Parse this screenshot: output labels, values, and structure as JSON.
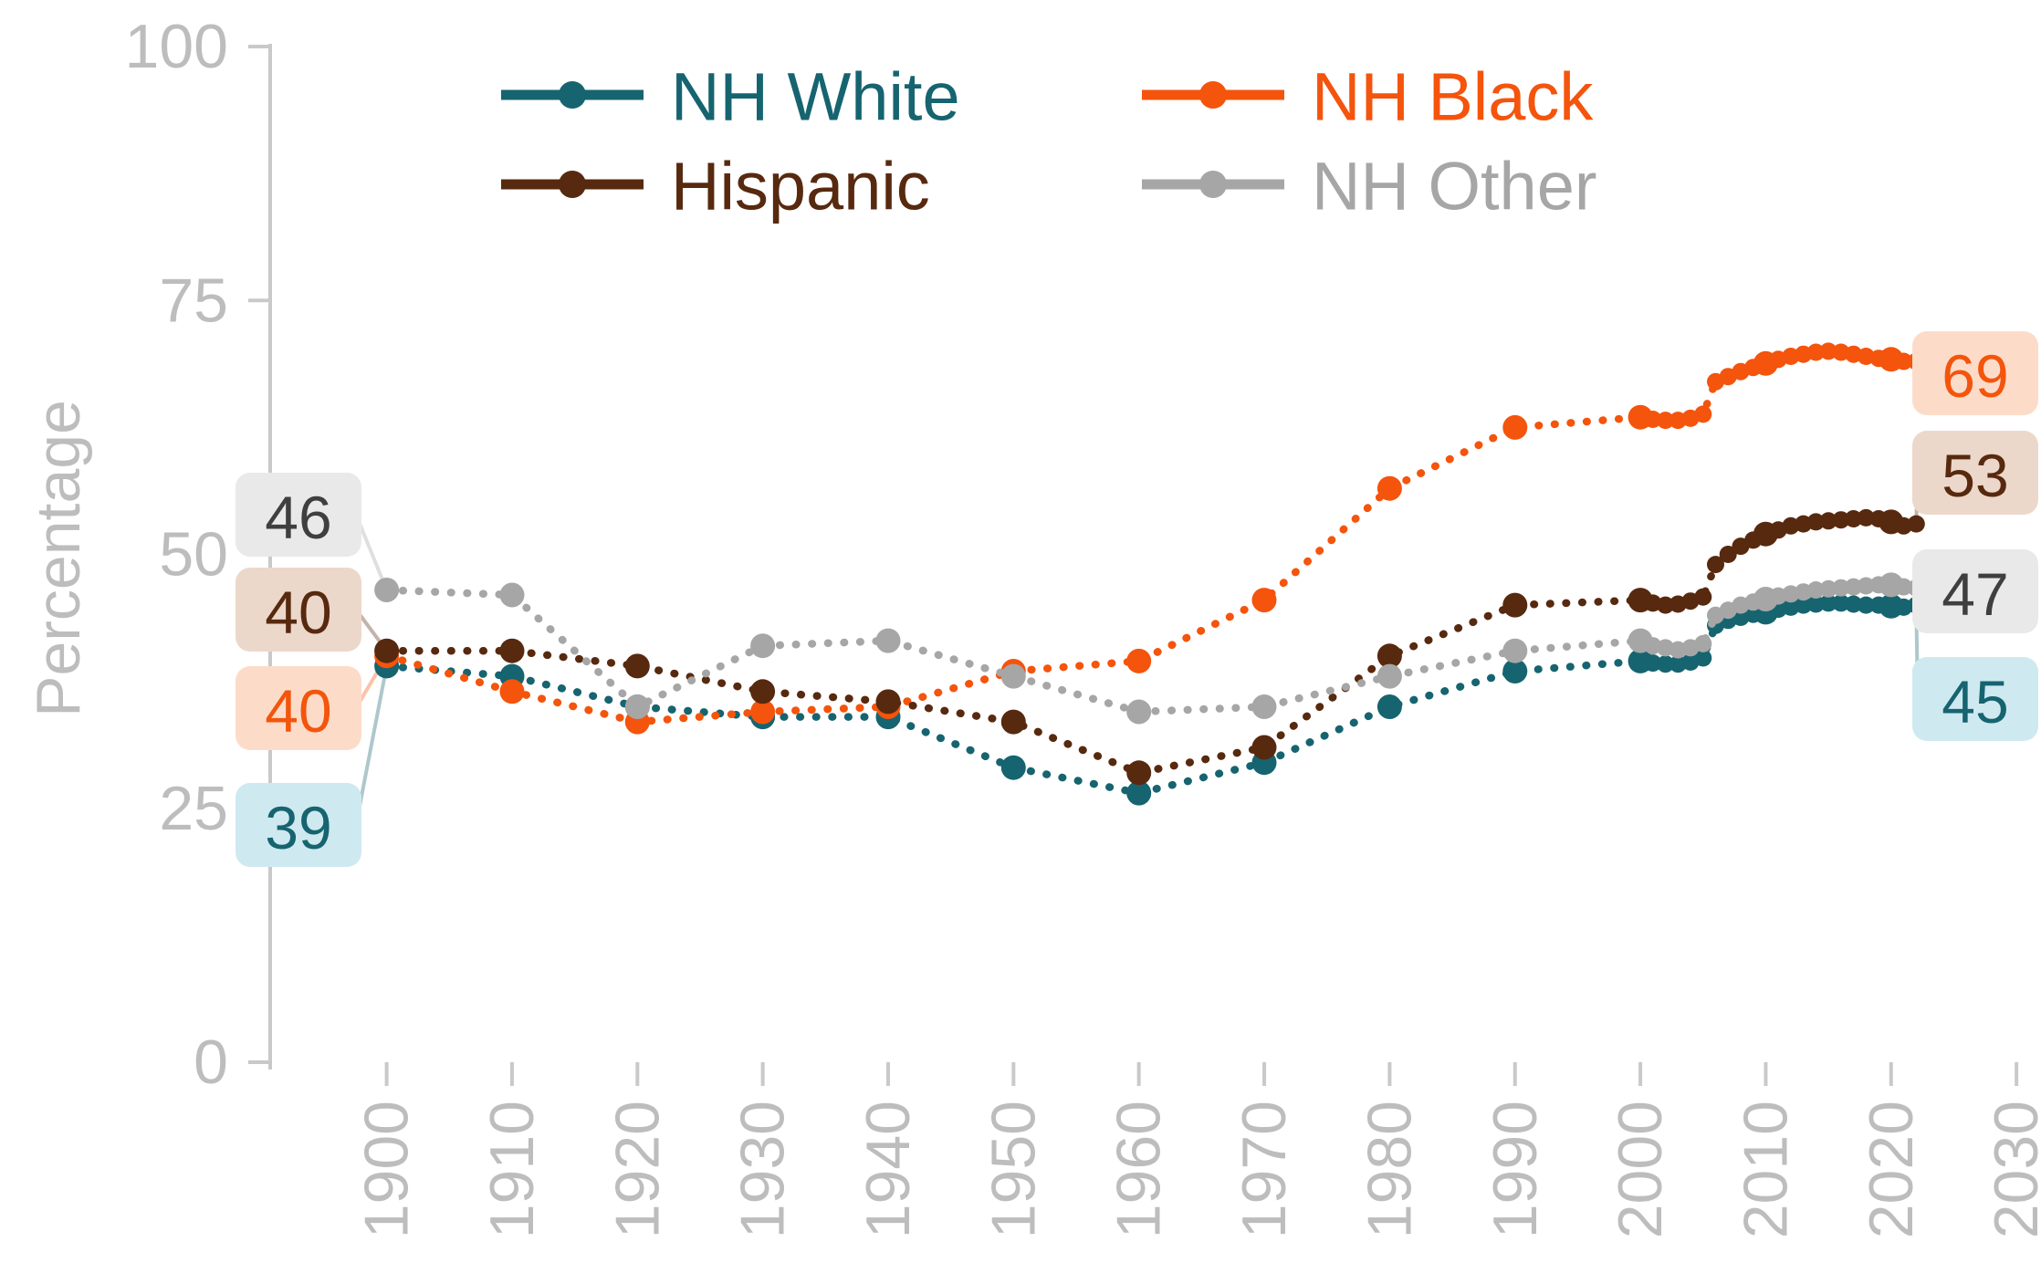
{
  "figure": {
    "background": "#ffffff",
    "axis_color": "#c9c9c9",
    "tick_label_color": "#bdbdbd"
  },
  "chart_data": {
    "type": "line",
    "title": "",
    "ylabel": "Percentage",
    "xlabel": "",
    "ylim": [
      0,
      100
    ],
    "yticks": [
      0,
      25,
      50,
      75,
      100
    ],
    "xticks": [
      1900,
      1910,
      1920,
      1930,
      1940,
      1950,
      1960,
      1970,
      1980,
      1990,
      2000,
      2010,
      2020,
      2030
    ],
    "grid": false,
    "legend_position": "top",
    "line_style": "dotted-with-markers",
    "series": [
      {
        "name": "NH White",
        "color": "#166470",
        "badge_bg": "#cfe9f0",
        "badge_text": "#166470",
        "start_label": "39",
        "end_label": "45",
        "points": [
          [
            1900,
            39
          ],
          [
            1910,
            38
          ],
          [
            1920,
            35
          ],
          [
            1930,
            34
          ],
          [
            1940,
            34
          ],
          [
            1950,
            29
          ],
          [
            1960,
            26.5
          ],
          [
            1970,
            29.5
          ],
          [
            1980,
            35
          ],
          [
            1990,
            38.5
          ],
          [
            2000,
            39.5
          ],
          [
            2001,
            39.3
          ],
          [
            2002,
            39.2
          ],
          [
            2003,
            39.2
          ],
          [
            2004,
            39.4
          ],
          [
            2005,
            39.8
          ],
          [
            2006,
            43
          ],
          [
            2007,
            43.5
          ],
          [
            2008,
            43.8
          ],
          [
            2009,
            44.1
          ],
          [
            2010,
            44.3
          ],
          [
            2011,
            44.6
          ],
          [
            2012,
            44.8
          ],
          [
            2013,
            45
          ],
          [
            2014,
            45.1
          ],
          [
            2015,
            45.2
          ],
          [
            2016,
            45.2
          ],
          [
            2017,
            45.1
          ],
          [
            2018,
            45
          ],
          [
            2019,
            45
          ],
          [
            2020,
            44.9
          ],
          [
            2021,
            44.8
          ],
          [
            2022,
            45
          ]
        ]
      },
      {
        "name": "NH Black",
        "color": "#f4540c",
        "badge_bg": "#fcdcc9",
        "badge_text": "#f4540c",
        "start_label": "40",
        "end_label": "69",
        "points": [
          [
            1900,
            40
          ],
          [
            1910,
            36.5
          ],
          [
            1920,
            33.5
          ],
          [
            1930,
            34.5
          ],
          [
            1940,
            35
          ],
          [
            1950,
            38.5
          ],
          [
            1960,
            39.5
          ],
          [
            1970,
            45.5
          ],
          [
            1980,
            56.5
          ],
          [
            1990,
            62.5
          ],
          [
            2000,
            63.5
          ],
          [
            2001,
            63.3
          ],
          [
            2002,
            63.2
          ],
          [
            2003,
            63.2
          ],
          [
            2004,
            63.4
          ],
          [
            2005,
            63.8
          ],
          [
            2006,
            67
          ],
          [
            2007,
            67.5
          ],
          [
            2008,
            68
          ],
          [
            2009,
            68.4
          ],
          [
            2010,
            68.8
          ],
          [
            2011,
            69.2
          ],
          [
            2012,
            69.5
          ],
          [
            2013,
            69.7
          ],
          [
            2014,
            69.9
          ],
          [
            2015,
            70
          ],
          [
            2016,
            69.9
          ],
          [
            2017,
            69.7
          ],
          [
            2018,
            69.5
          ],
          [
            2019,
            69.3
          ],
          [
            2020,
            69.2
          ],
          [
            2021,
            69
          ],
          [
            2022,
            69
          ]
        ]
      },
      {
        "name": "Hispanic",
        "color": "#57290f",
        "badge_bg": "#ecd8ca",
        "badge_text": "#57290f",
        "start_label": "40",
        "end_label": "53",
        "points": [
          [
            1900,
            40.5
          ],
          [
            1910,
            40.5
          ],
          [
            1920,
            39
          ],
          [
            1930,
            36.5
          ],
          [
            1940,
            35.5
          ],
          [
            1950,
            33.5
          ],
          [
            1960,
            28.5
          ],
          [
            1970,
            31
          ],
          [
            1980,
            40
          ],
          [
            1990,
            45
          ],
          [
            2000,
            45.5
          ],
          [
            2001,
            45.2
          ],
          [
            2002,
            45
          ],
          [
            2003,
            45.1
          ],
          [
            2004,
            45.4
          ],
          [
            2005,
            45.8
          ],
          [
            2006,
            49
          ],
          [
            2007,
            50
          ],
          [
            2008,
            50.8
          ],
          [
            2009,
            51.4
          ],
          [
            2010,
            52
          ],
          [
            2011,
            52.4
          ],
          [
            2012,
            52.8
          ],
          [
            2013,
            53
          ],
          [
            2014,
            53.2
          ],
          [
            2015,
            53.3
          ],
          [
            2016,
            53.4
          ],
          [
            2017,
            53.5
          ],
          [
            2018,
            53.6
          ],
          [
            2019,
            53.5
          ],
          [
            2020,
            53.2
          ],
          [
            2021,
            52.8
          ],
          [
            2022,
            53
          ]
        ]
      },
      {
        "name": "NH Other",
        "color": "#a6a6a6",
        "badge_bg": "#e9e9e9",
        "badge_text": "#3f3f3f",
        "start_label": "46",
        "end_label": "47",
        "points": [
          [
            1900,
            46.5
          ],
          [
            1910,
            46
          ],
          [
            1920,
            35
          ],
          [
            1930,
            41
          ],
          [
            1940,
            41.5
          ],
          [
            1950,
            38
          ],
          [
            1960,
            34.5
          ],
          [
            1970,
            35
          ],
          [
            1980,
            38
          ],
          [
            1990,
            40.5
          ],
          [
            2000,
            41.5
          ],
          [
            2001,
            41
          ],
          [
            2002,
            40.8
          ],
          [
            2003,
            40.6
          ],
          [
            2004,
            40.8
          ],
          [
            2005,
            41.2
          ],
          [
            2006,
            44
          ],
          [
            2007,
            44.5
          ],
          [
            2008,
            45
          ],
          [
            2009,
            45.3
          ],
          [
            2010,
            45.6
          ],
          [
            2011,
            45.9
          ],
          [
            2012,
            46.1
          ],
          [
            2013,
            46.3
          ],
          [
            2014,
            46.5
          ],
          [
            2015,
            46.6
          ],
          [
            2016,
            46.7
          ],
          [
            2017,
            46.8
          ],
          [
            2018,
            46.9
          ],
          [
            2019,
            47
          ],
          [
            2020,
            47
          ],
          [
            2021,
            46.8
          ],
          [
            2022,
            46.7
          ]
        ]
      }
    ]
  }
}
